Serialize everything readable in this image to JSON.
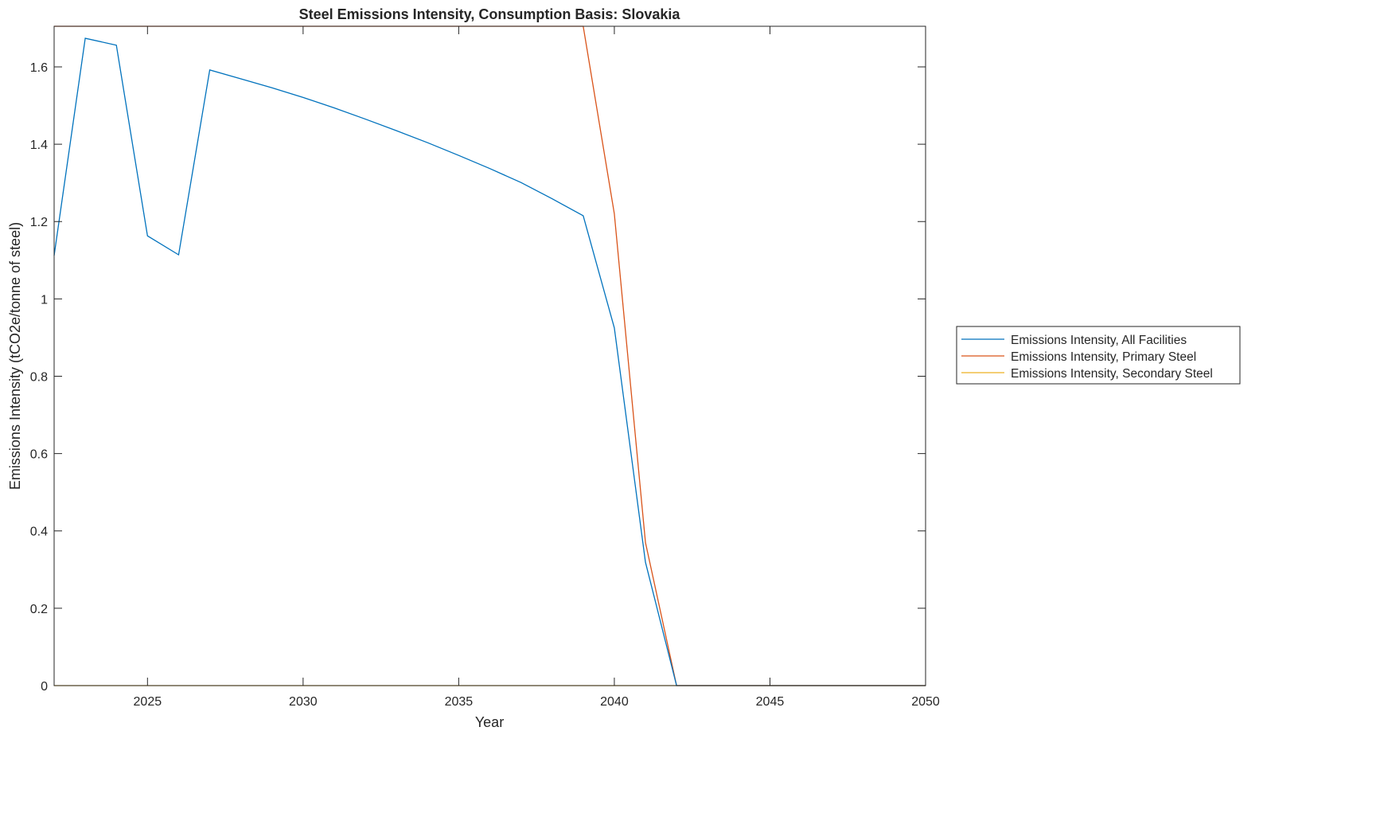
{
  "chart_data": {
    "type": "line",
    "title": "Steel Emissions Intensity, Consumption Basis: Slovakia",
    "xlabel": "Year",
    "ylabel": "Emissions Intensity (tCO2e/tonne of steel)",
    "xlim": [
      2022,
      2050
    ],
    "ylim": [
      0,
      1.705
    ],
    "xticks": [
      2025,
      2030,
      2035,
      2040,
      2045,
      2050
    ],
    "yticks": [
      0,
      0.2,
      0.4,
      0.6,
      0.8,
      1,
      1.2,
      1.4,
      1.6
    ],
    "ytick_labels": [
      "0",
      "0.2",
      "0.4",
      "0.6",
      "0.8",
      "1",
      "1.2",
      "1.4",
      "1.6"
    ],
    "grid": false,
    "legend_placement": "outside-right",
    "x": [
      2022,
      2023,
      2024,
      2025,
      2026,
      2027,
      2028,
      2029,
      2030,
      2031,
      2032,
      2033,
      2034,
      2035,
      2036,
      2037,
      2038,
      2039,
      2040,
      2041,
      2042,
      2043,
      2044,
      2045,
      2046,
      2047,
      2048,
      2049,
      2050
    ],
    "series": [
      {
        "name": "Emissions Intensity, All Facilities",
        "color": "#0072BD",
        "values": [
          1.112,
          1.674,
          1.656,
          1.163,
          1.114,
          1.592,
          1.569,
          1.546,
          1.521,
          1.494,
          1.465,
          1.435,
          1.404,
          1.371,
          1.337,
          1.301,
          1.259,
          1.215,
          0.925,
          0.319,
          0,
          0,
          0,
          0,
          0,
          0,
          0,
          0,
          0
        ]
      },
      {
        "name": "Emissions Intensity, Primary Steel",
        "color": "#D95319",
        "values": [
          1.705,
          1.705,
          1.705,
          1.705,
          1.705,
          1.705,
          1.705,
          1.705,
          1.705,
          1.705,
          1.705,
          1.705,
          1.705,
          1.705,
          1.705,
          1.705,
          1.705,
          1.705,
          1.22,
          0.37,
          0,
          0,
          0,
          0,
          0,
          0,
          0,
          0,
          0
        ]
      },
      {
        "name": "Emissions Intensity, Secondary Steel",
        "color": "#EDB120",
        "values": [
          0,
          0,
          0,
          0,
          0,
          0,
          0,
          0,
          0,
          0,
          0,
          0,
          0,
          0,
          0,
          0,
          0,
          0,
          0,
          0,
          0,
          0,
          0,
          0,
          0,
          0,
          0,
          0,
          0
        ]
      }
    ]
  }
}
